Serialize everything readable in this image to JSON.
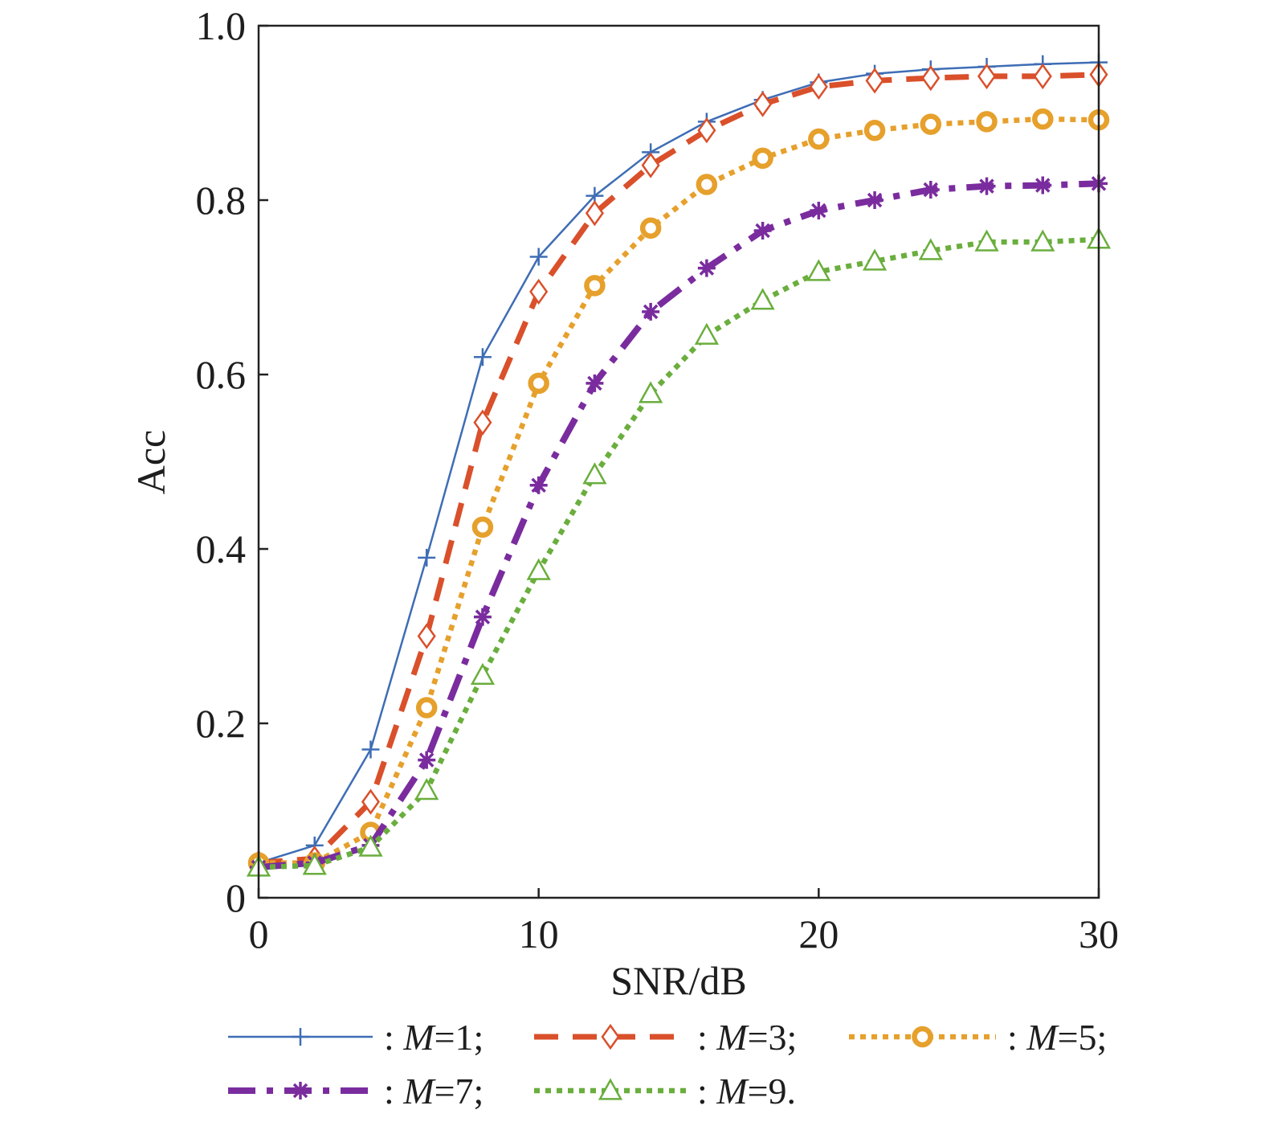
{
  "chart_data": {
    "type": "line",
    "xlabel": "SNR/dB",
    "ylabel": "Acc",
    "xlim": [
      0,
      30
    ],
    "ylim": [
      0,
      1
    ],
    "xticks": [
      0,
      10,
      20,
      30
    ],
    "xtick_labels": [
      "0",
      "10",
      "20",
      "30"
    ],
    "yticks": [
      0,
      0.2,
      0.4,
      0.6,
      0.8,
      1.0
    ],
    "ytick_labels": [
      "0",
      "0.2",
      "0.4",
      "0.6",
      "0.8",
      "1.0"
    ],
    "grid": false,
    "legend_position": "bottom",
    "x": [
      0,
      2,
      4,
      6,
      8,
      10,
      12,
      14,
      16,
      18,
      20,
      22,
      24,
      26,
      28,
      30
    ],
    "series": [
      {
        "name": ": M=1;",
        "color": "#3e6db5",
        "marker": "plus",
        "line": "solid",
        "values": [
          0.04,
          0.06,
          0.17,
          0.39,
          0.62,
          0.735,
          0.805,
          0.855,
          0.89,
          0.915,
          0.935,
          0.945,
          0.95,
          0.953,
          0.956,
          0.958
        ]
      },
      {
        "name": ": M=3;",
        "color": "#d9502b",
        "marker": "diamond",
        "line": "dashed",
        "values": [
          0.04,
          0.045,
          0.11,
          0.3,
          0.545,
          0.695,
          0.785,
          0.84,
          0.88,
          0.91,
          0.93,
          0.937,
          0.94,
          0.942,
          0.942,
          0.944
        ]
      },
      {
        "name": ": M=5;",
        "color": "#e6a02c",
        "marker": "circle",
        "line": "dotted",
        "values": [
          0.04,
          0.04,
          0.075,
          0.218,
          0.425,
          0.59,
          0.702,
          0.768,
          0.818,
          0.848,
          0.87,
          0.88,
          0.887,
          0.89,
          0.893,
          0.892
        ]
      },
      {
        "name": ": M=7;",
        "color": "#7a2c9e",
        "marker": "asterisk",
        "line": "dashdot",
        "values": [
          0.035,
          0.04,
          0.06,
          0.158,
          0.322,
          0.473,
          0.59,
          0.672,
          0.722,
          0.765,
          0.788,
          0.8,
          0.812,
          0.816,
          0.817,
          0.819
        ]
      },
      {
        "name": ": M=9.",
        "color": "#6aae3d",
        "marker": "triangle",
        "line": "dotted",
        "values": [
          0.035,
          0.037,
          0.058,
          0.123,
          0.255,
          0.375,
          0.485,
          0.578,
          0.645,
          0.685,
          0.718,
          0.73,
          0.742,
          0.752,
          0.752,
          0.755
        ]
      }
    ]
  }
}
